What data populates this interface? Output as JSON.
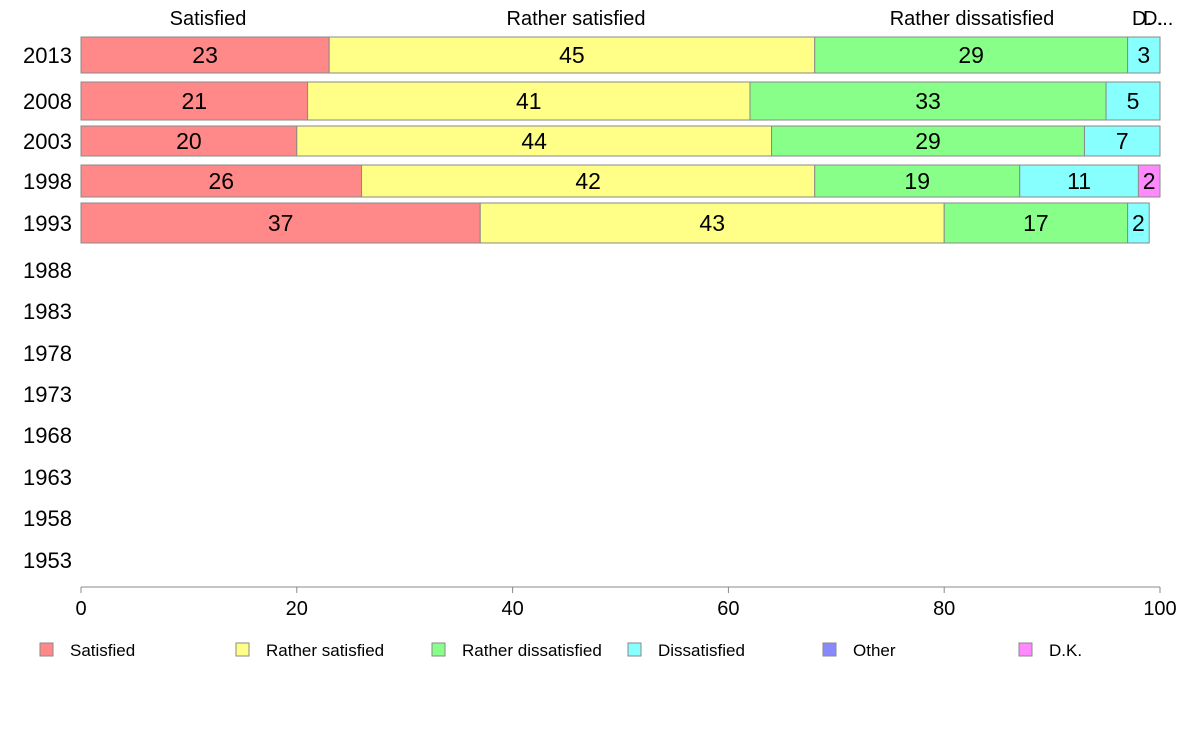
{
  "chart_data": {
    "type": "bar",
    "orientation": "horizontal",
    "stacked": true,
    "categories": [
      "2013",
      "2008",
      "2003",
      "1998",
      "1993",
      "1988",
      "1983",
      "1978",
      "1973",
      "1968",
      "1963",
      "1958",
      "1953"
    ],
    "series": [
      {
        "name": "Satisfied",
        "color": "#ff8888",
        "values": [
          23,
          21,
          20,
          26,
          37,
          null,
          null,
          null,
          null,
          null,
          null,
          null,
          null
        ]
      },
      {
        "name": "Rather satisfied",
        "color": "#ffff88",
        "values": [
          45,
          41,
          44,
          42,
          43,
          null,
          null,
          null,
          null,
          null,
          null,
          null,
          null
        ]
      },
      {
        "name": "Rather dissatisfied",
        "color": "#88ff88",
        "values": [
          29,
          33,
          29,
          19,
          17,
          null,
          null,
          null,
          null,
          null,
          null,
          null,
          null
        ]
      },
      {
        "name": "Dissatisfied",
        "color": "#88ffff",
        "values": [
          3,
          5,
          7,
          11,
          2,
          null,
          null,
          null,
          null,
          null,
          null,
          null,
          null
        ]
      },
      {
        "name": "Other",
        "color": "#8888ff",
        "values": [
          0,
          0,
          0,
          0,
          0,
          null,
          null,
          null,
          null,
          null,
          null,
          null,
          null
        ]
      },
      {
        "name": "D.K.",
        "color": "#ff88ff",
        "values": [
          0,
          0,
          0,
          2,
          0,
          null,
          null,
          null,
          null,
          null,
          null,
          null,
          null
        ]
      }
    ],
    "top_labels": [
      "Satisfied",
      "Rather satisfied",
      "Rather dissatisfied",
      "D.",
      "D.",
      "..."
    ],
    "xlim": [
      0,
      100
    ],
    "xticks": [
      "0",
      "20",
      "40",
      "60",
      "80",
      "100"
    ],
    "grid": false,
    "legend_position": "bottom"
  }
}
